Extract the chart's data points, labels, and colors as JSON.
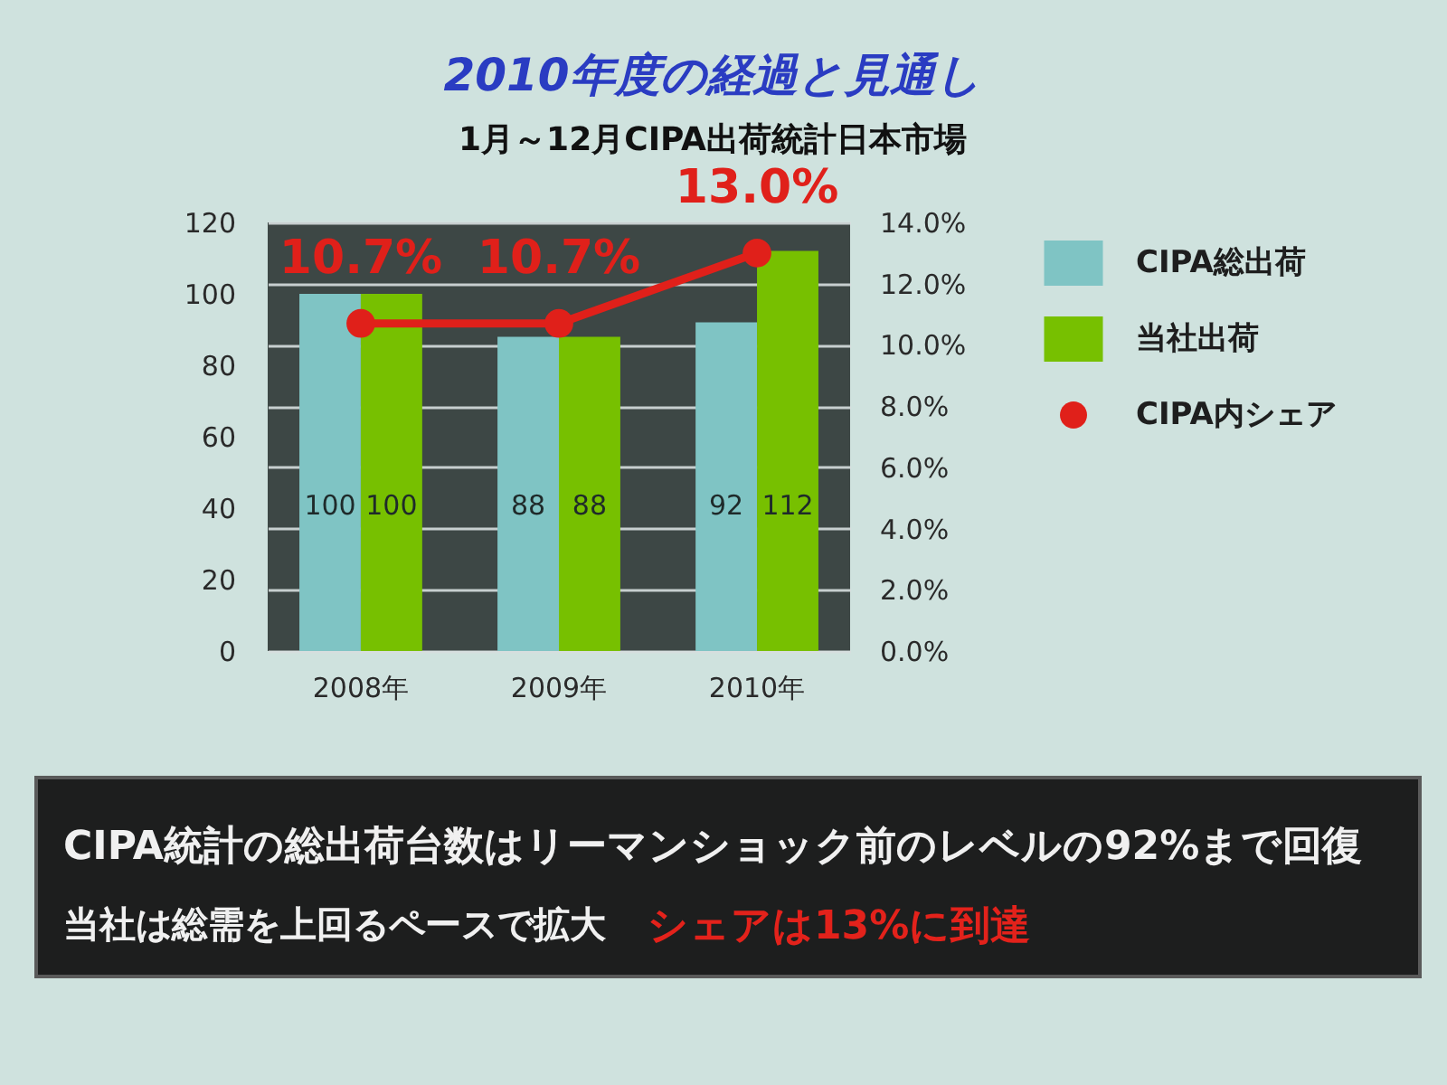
{
  "chart_data": {
    "type": "bar",
    "title": "2010年度の経過と見通し",
    "subtitle": "1月～12月CIPA出荷統計日本市場",
    "categories": [
      "2008年",
      "2009年",
      "2010年"
    ],
    "series": [
      {
        "name": "CIPA総出荷",
        "color": "#7fc4c4",
        "values": [
          100,
          88,
          92
        ],
        "value_labels": [
          "100",
          "88",
          "92"
        ]
      },
      {
        "name": "当社出荷",
        "color": "#77c000",
        "values": [
          100,
          88,
          112
        ],
        "value_labels": [
          "100",
          "88",
          "112"
        ]
      },
      {
        "name": "CIPA内シェア",
        "type": "line",
        "axis": "y2",
        "color": "#e0201a",
        "marker": "circle",
        "line_style": "solid",
        "values": [
          10.7,
          10.7,
          13.0
        ],
        "value_labels": [
          "10.7%",
          "10.7%",
          "13.0%"
        ]
      }
    ],
    "ylim": [
      0,
      120
    ],
    "yticks": [
      0,
      20,
      40,
      60,
      80,
      100,
      120
    ],
    "y2lim": [
      0,
      14
    ],
    "y2ticks": [
      {
        "value": 0,
        "label": "0.0%"
      },
      {
        "value": 2,
        "label": "2.0%"
      },
      {
        "value": 4,
        "label": "4.0%"
      },
      {
        "value": 6,
        "label": "6.0%"
      },
      {
        "value": 8,
        "label": "8.0%"
      },
      {
        "value": 10,
        "label": "10.0%"
      },
      {
        "value": 12,
        "label": "12.0%"
      },
      {
        "value": 14,
        "label": "14.0%"
      }
    ],
    "grid": "y2",
    "legend": "right",
    "annotations": [
      "CIPA統計の総出荷台数はリーマンショック前のレベルの92%まで回復",
      "当社は総需を上回るペースで拡大",
      "シェアは13%に到達"
    ]
  }
}
